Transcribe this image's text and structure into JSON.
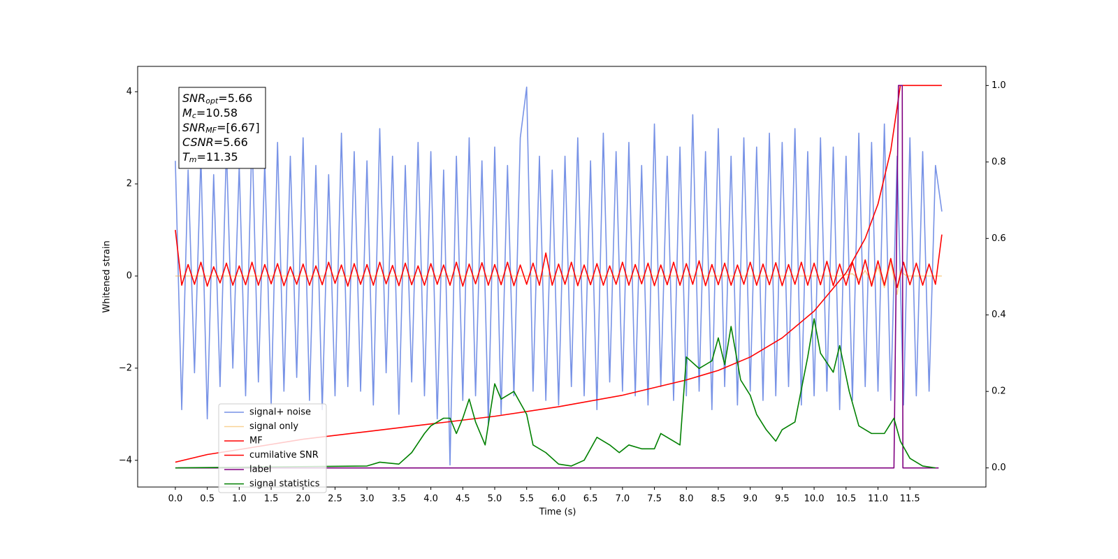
{
  "chart_data": {
    "type": "line",
    "xlabel": "Time (s)",
    "ylabel": "Whitened strain",
    "xlim": [
      -0.59,
      12.69
    ],
    "ylim": [
      -4.58,
      4.55
    ],
    "y2lim": [
      -0.05,
      1.05
    ],
    "xticks": [
      {
        "value": 0,
        "label": "0.0"
      },
      0.5,
      {
        "value": 1,
        "label": "1.0"
      },
      1.5,
      {
        "value": 2,
        "label": "2.0"
      },
      2.5,
      {
        "value": 3,
        "label": "3.0"
      },
      3.5,
      {
        "value": 4,
        "label": "4.0"
      },
      4.5,
      {
        "value": 5,
        "label": "5.0"
      },
      5.5,
      {
        "value": 6,
        "label": "6.0"
      },
      6.5,
      {
        "value": 7,
        "label": "7.0"
      },
      7.5,
      {
        "value": 8,
        "label": "8.0"
      },
      8.5,
      {
        "value": 9,
        "label": "9.0"
      },
      9.5,
      {
        "value": 10,
        "label": "10.0"
      },
      10.5,
      {
        "value": 11,
        "label": "11.0"
      },
      11.5
    ],
    "yticks": [
      {
        "value": -4,
        "label": "−4"
      },
      {
        "value": -2,
        "label": "−2"
      },
      0,
      2,
      4
    ],
    "y2ticks": [
      {
        "value": 0,
        "label": "0.0"
      },
      0.2,
      0.4,
      0.6,
      0.8,
      {
        "value": 1,
        "label": "1.0"
      }
    ],
    "legend": "lower left",
    "annotations": [
      {
        "base": "SNR",
        "sub": "opt",
        "text": "=5.66"
      },
      {
        "base": "M",
        "sub": "c",
        "text": "=10.58"
      },
      {
        "base": "SNR",
        "sub": "MF",
        "text": "=[6.67]"
      },
      {
        "base": "CSNR",
        "text": "=5.66"
      },
      {
        "base": "T",
        "sub": "m",
        "text": "=11.35"
      }
    ],
    "x": [
      0,
      0.1,
      0.2,
      0.3,
      0.4,
      0.5,
      0.6,
      0.7,
      0.8,
      0.9,
      1,
      1.1,
      1.2,
      1.3,
      1.4,
      1.5,
      1.6,
      1.7,
      1.8,
      1.9,
      2,
      2.1,
      2.2,
      2.3,
      2.4,
      2.5,
      2.6,
      2.7,
      2.8,
      2.9,
      3,
      3.1,
      3.2,
      3.3,
      3.4,
      3.5,
      3.6,
      3.7,
      3.8,
      3.9,
      4,
      4.1,
      4.2,
      4.3,
      4.4,
      4.5,
      4.6,
      4.7,
      4.8,
      4.9,
      5,
      5.1,
      5.2,
      5.3,
      5.4,
      5.5,
      5.6,
      5.7,
      5.8,
      5.9,
      6,
      6.1,
      6.2,
      6.3,
      6.4,
      6.5,
      6.6,
      6.7,
      6.8,
      6.9,
      7,
      7.1,
      7.2,
      7.3,
      7.4,
      7.5,
      7.6,
      7.7,
      7.8,
      7.9,
      8,
      8.1,
      8.2,
      8.3,
      8.4,
      8.5,
      8.6,
      8.7,
      8.8,
      8.9,
      9,
      9.1,
      9.2,
      9.3,
      9.4,
      9.5,
      9.6,
      9.7,
      9.8,
      9.9,
      10,
      10.1,
      10.2,
      10.3,
      10.4,
      10.5,
      10.6,
      10.7,
      10.8,
      10.9,
      11,
      11.1,
      11.2,
      11.3,
      11.4,
      11.5,
      11.6,
      11.7,
      11.8,
      11.9,
      12
    ],
    "series": [
      {
        "name": "signal+ noise",
        "color": "#7792e6",
        "values": [
          2.5,
          -2.9,
          2.3,
          -2.1,
          2.6,
          -3.1,
          2.2,
          -2.4,
          2.8,
          -2.0,
          2.4,
          -2.6,
          3.1,
          -2.3,
          2.5,
          -2.8,
          2.9,
          -2.5,
          2.6,
          -2.2,
          3.0,
          -2.7,
          2.4,
          -2.9,
          2.2,
          -2.6,
          3.1,
          -2.4,
          2.7,
          -2.5,
          2.5,
          -2.8,
          3.2,
          -2.1,
          2.6,
          -3.0,
          2.4,
          -2.3,
          2.9,
          -2.6,
          2.7,
          -3.1,
          2.3,
          -4.1,
          2.6,
          -2.7,
          3.0,
          -2.6,
          2.5,
          -3.2,
          2.8,
          -3.0,
          2.4,
          -2.6,
          3.0,
          4.1,
          -2.5,
          2.6,
          -2.7,
          2.3,
          -2.8,
          2.6,
          -2.4,
          3.0,
          -2.6,
          2.5,
          -2.9,
          3.1,
          -2.3,
          2.7,
          -2.5,
          2.9,
          -2.6,
          2.4,
          -2.8,
          3.3,
          -2.4,
          2.6,
          -2.7,
          2.8,
          -2.6,
          3.5,
          -2.5,
          2.7,
          -2.9,
          3.2,
          -2.4,
          2.6,
          -2.8,
          3.0,
          -2.5,
          2.8,
          -2.7,
          3.1,
          -2.6,
          2.9,
          -2.4,
          3.2,
          -2.8,
          2.7,
          -2.6,
          3.0,
          -2.5,
          2.8,
          -2.9,
          2.6,
          -2.7,
          3.1,
          -2.4,
          2.9,
          -2.5,
          3.3,
          -2.7,
          2.6,
          -2.8,
          3.0,
          -2.6,
          2.7,
          -2.5,
          2.4,
          1.4
        ]
      },
      {
        "name": "signal only",
        "color": "#f5b450",
        "x": [
          0,
          10.4,
          10.6,
          10.7,
          10.8,
          10.9,
          11.0,
          11.1,
          11.2,
          11.3,
          11.35,
          11.45,
          12
        ],
        "values": [
          0,
          0,
          0.05,
          -0.08,
          0.12,
          -0.15,
          0.2,
          -0.25,
          0.3,
          -0.4,
          0.1,
          0,
          0
        ]
      },
      {
        "name": "MF",
        "color": "#ff0000",
        "values": [
          1.0,
          -0.2,
          0.25,
          -0.18,
          0.3,
          -0.22,
          0.2,
          -0.15,
          0.28,
          -0.2,
          0.22,
          -0.19,
          0.3,
          -0.2,
          0.25,
          -0.17,
          0.27,
          -0.21,
          0.2,
          -0.18,
          0.26,
          -0.2,
          0.22,
          -0.19,
          0.3,
          -0.16,
          0.24,
          -0.22,
          0.27,
          -0.18,
          0.25,
          -0.2,
          0.3,
          -0.17,
          0.23,
          -0.21,
          0.28,
          -0.19,
          0.22,
          -0.2,
          0.27,
          -0.18,
          0.24,
          -0.2,
          0.3,
          -0.22,
          0.26,
          -0.17,
          0.29,
          -0.2,
          0.25,
          -0.19,
          0.3,
          -0.21,
          0.24,
          -0.18,
          0.28,
          -0.2,
          0.5,
          -0.2,
          0.26,
          -0.18,
          0.3,
          -0.21,
          0.24,
          -0.19,
          0.27,
          -0.2,
          0.22,
          -0.18,
          0.3,
          -0.2,
          0.25,
          -0.17,
          0.28,
          -0.21,
          0.24,
          -0.19,
          0.3,
          -0.2,
          0.27,
          -0.18,
          0.33,
          -0.21,
          0.25,
          -0.19,
          0.28,
          -0.2,
          0.24,
          -0.18,
          0.3,
          -0.2,
          0.26,
          -0.19,
          0.29,
          -0.21,
          0.25,
          -0.18,
          0.3,
          -0.2,
          0.28,
          -0.19,
          0.32,
          -0.21,
          0.26,
          -0.2,
          0.3,
          -0.18,
          0.35,
          -0.22,
          0.33,
          -0.2,
          0.38,
          -0.25,
          0.3,
          -0.19,
          0.28,
          -0.2,
          0.26,
          -0.18,
          0.9
        ]
      },
      {
        "name": "cumilative SNR",
        "color": "#ff0000",
        "axis": "y2",
        "x": [
          0,
          0.5,
          1,
          2,
          3,
          4,
          5,
          6,
          7,
          8,
          8.5,
          9,
          9.5,
          10,
          10.5,
          10.8,
          11,
          11.2,
          11.35,
          12
        ],
        "values": [
          0.015,
          0.035,
          0.048,
          0.075,
          0.095,
          0.115,
          0.135,
          0.16,
          0.19,
          0.23,
          0.255,
          0.29,
          0.34,
          0.41,
          0.51,
          0.6,
          0.69,
          0.83,
          1.0,
          1.0
        ]
      },
      {
        "name": "label",
        "color": "#800080",
        "axis": "y2",
        "x": [
          0,
          11.25,
          11.32,
          11.38,
          11.39,
          11.95
        ],
        "values": [
          0,
          0,
          1,
          1,
          0,
          0
        ]
      },
      {
        "name": "signal statistics",
        "color": "#008000",
        "axis": "y2",
        "x": [
          0,
          3,
          3.2,
          3.5,
          3.7,
          3.9,
          4.0,
          4.1,
          4.2,
          4.3,
          4.4,
          4.5,
          4.6,
          4.7,
          4.85,
          5.0,
          5.1,
          5.3,
          5.4,
          5.5,
          5.6,
          5.8,
          6.0,
          6.2,
          6.4,
          6.6,
          6.8,
          6.95,
          7.1,
          7.3,
          7.5,
          7.6,
          7.8,
          7.9,
          8.0,
          8.2,
          8.4,
          8.5,
          8.6,
          8.7,
          8.85,
          9.0,
          9.1,
          9.25,
          9.4,
          9.5,
          9.7,
          9.9,
          10.0,
          10.1,
          10.3,
          10.4,
          10.55,
          10.7,
          10.9,
          11.1,
          11.25,
          11.35,
          11.5,
          11.7,
          11.9
        ],
        "values": [
          0,
          0.005,
          0.015,
          0.01,
          0.04,
          0.09,
          0.11,
          0.12,
          0.13,
          0.13,
          0.09,
          0.13,
          0.18,
          0.12,
          0.06,
          0.22,
          0.18,
          0.2,
          0.17,
          0.14,
          0.06,
          0.04,
          0.01,
          0.005,
          0.02,
          0.08,
          0.06,
          0.04,
          0.06,
          0.05,
          0.05,
          0.09,
          0.07,
          0.06,
          0.29,
          0.26,
          0.28,
          0.34,
          0.27,
          0.37,
          0.23,
          0.19,
          0.14,
          0.1,
          0.07,
          0.1,
          0.12,
          0.29,
          0.39,
          0.3,
          0.25,
          0.32,
          0.2,
          0.11,
          0.09,
          0.09,
          0.13,
          0.07,
          0.025,
          0.005,
          0
        ]
      }
    ]
  }
}
